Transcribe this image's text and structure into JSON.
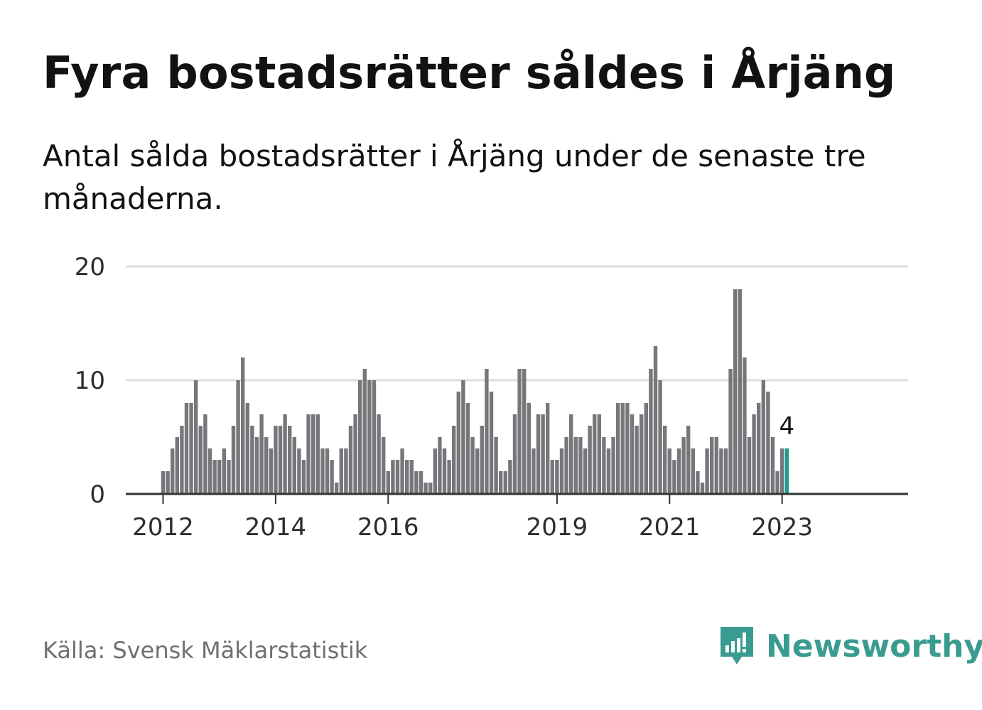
{
  "title": "Fyra bostadsrätter såldes i Årjäng",
  "subtitle": "Antal sålda bostadsrätter i Årjäng under de senaste tre månaderna.",
  "source": "Källa: Svensk Mäklarstatistik",
  "brand": {
    "name": "Newsworthy",
    "icon": "newsworthy-logo-icon",
    "color": "#3a9c90"
  },
  "colors": {
    "bar": "#76767b",
    "highlight": "#1a9c8e",
    "grid": "#dedede",
    "axis": "#333333"
  },
  "chart_data": {
    "type": "bar",
    "title": "",
    "xlabel": "",
    "ylabel": "",
    "ylim": [
      0,
      20
    ],
    "yticks": [
      0,
      10,
      20
    ],
    "x_start": "2012-01",
    "x_ticks": [
      {
        "label": "2012",
        "index": 0
      },
      {
        "label": "2014",
        "index": 24
      },
      {
        "label": "2016",
        "index": 48
      },
      {
        "label": "2019",
        "index": 84
      },
      {
        "label": "2021",
        "index": 108
      },
      {
        "label": "2023",
        "index": 132
      }
    ],
    "values": [
      2,
      2,
      4,
      5,
      6,
      8,
      8,
      10,
      6,
      7,
      4,
      3,
      3,
      4,
      3,
      6,
      10,
      12,
      8,
      6,
      5,
      7,
      5,
      4,
      6,
      6,
      7,
      6,
      5,
      4,
      3,
      7,
      7,
      7,
      4,
      4,
      3,
      1,
      4,
      4,
      6,
      7,
      10,
      11,
      10,
      10,
      7,
      5,
      2,
      3,
      3,
      4,
      3,
      3,
      2,
      2,
      1,
      1,
      4,
      5,
      4,
      3,
      6,
      9,
      10,
      8,
      5,
      4,
      6,
      11,
      9,
      5,
      2,
      2,
      3,
      7,
      11,
      11,
      8,
      4,
      7,
      7,
      8,
      3,
      3,
      4,
      5,
      7,
      5,
      5,
      4,
      6,
      7,
      7,
      5,
      4,
      5,
      8,
      8,
      8,
      7,
      6,
      7,
      8,
      11,
      13,
      10,
      6,
      4,
      3,
      4,
      5,
      6,
      4,
      2,
      1,
      4,
      5,
      5,
      4,
      4,
      11,
      18,
      18,
      12,
      5,
      7,
      8,
      10,
      9,
      5,
      2,
      4,
      4
    ],
    "highlight_last": true,
    "annotation": "4"
  }
}
